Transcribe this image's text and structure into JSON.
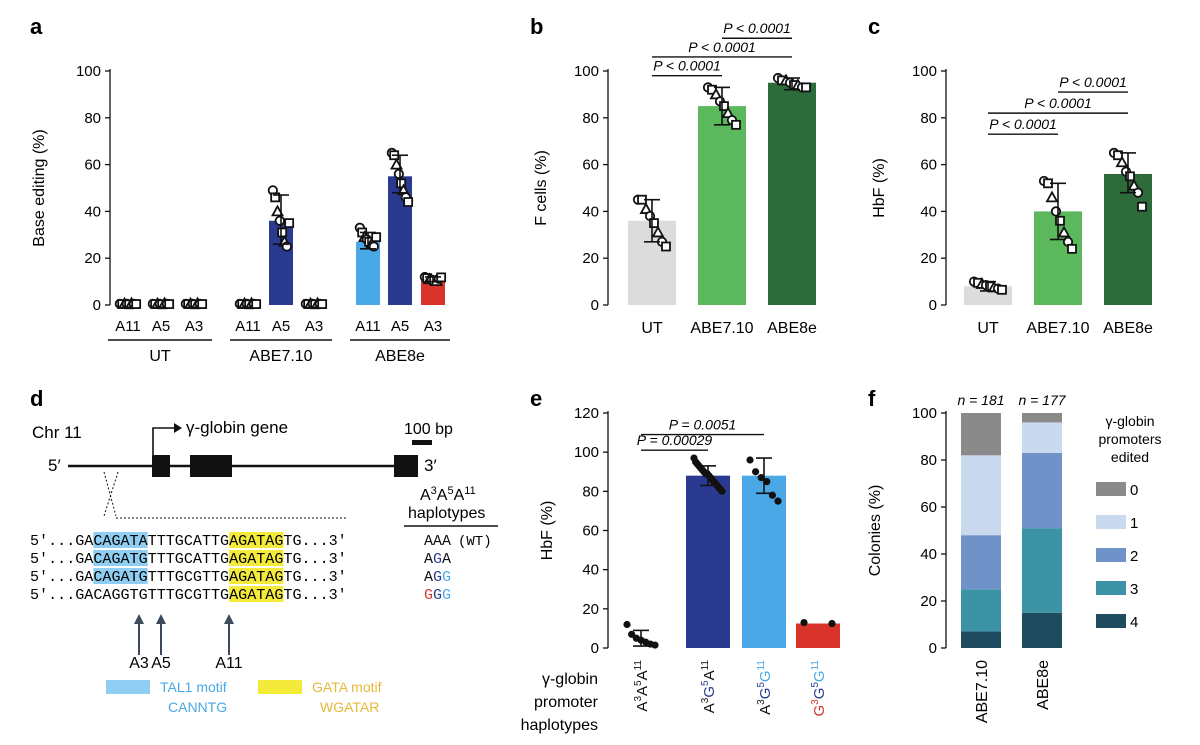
{
  "colors": {
    "ut": "#dcdcdc",
    "abe710_green": "#5cb85c",
    "abe8e_green": "#2e6b3a",
    "navy": "#2b3a91",
    "sky": "#4aa8e6",
    "red": "#d9342b",
    "tal1": "#8fcef2",
    "gata": "#f3ea3a",
    "stack": [
      "#8a8a8a",
      "#c9d9ee",
      "#6f93c9",
      "#3c93a6",
      "#1e4b5e"
    ]
  },
  "panels": {
    "a": {
      "letter": "a",
      "chart_data": {
        "type": "bar",
        "ylabel": "Base editing (%)",
        "ylim": [
          0,
          100
        ],
        "yticks": [
          "0",
          "20",
          "40",
          "60",
          "80",
          "100"
        ],
        "group_labels": [
          "UT",
          "ABE7.10",
          "ABE8e"
        ],
        "bar_labels": [
          "A11",
          "A5",
          "A3",
          "A11",
          "A5",
          "A3",
          "A11",
          "A5",
          "A3"
        ],
        "values": [
          0.5,
          0.5,
          0.5,
          0.5,
          36,
          0.5,
          27,
          55,
          11
        ],
        "err_lo": [
          0.5,
          0.5,
          0.5,
          0.5,
          26,
          0.5,
          24,
          48,
          10
        ],
        "err_hi": [
          0.6,
          0.6,
          0.6,
          0.6,
          47,
          0.6,
          31,
          64,
          12
        ],
        "bar_colors": [
          "#dcdcdc",
          "#dcdcdc",
          "#dcdcdc",
          "#dcdcdc",
          "#2b3a91",
          "#dcdcdc",
          "#4aa8e6",
          "#2b3a91",
          "#d9342b"
        ],
        "points": [
          [
            0.5,
            0.4,
            0.6,
            0.5,
            0.3,
            0.7,
            0.5,
            0.4
          ],
          [
            0.5,
            0.4,
            0.6,
            0.5,
            0.3,
            0.7,
            0.5,
            0.4
          ],
          [
            0.5,
            0.4,
            0.6,
            0.5,
            0.3,
            0.7,
            0.5,
            0.4
          ],
          [
            0.5,
            0.4,
            0.6,
            0.5,
            0.3,
            0.7,
            0.5,
            0.4
          ],
          [
            49,
            46,
            40,
            36,
            31,
            27,
            25,
            35
          ],
          [
            0.5,
            0.4,
            0.6,
            0.5,
            0.3,
            0.7,
            0.5,
            0.4
          ],
          [
            33,
            31,
            29,
            28,
            27,
            26,
            25,
            29
          ],
          [
            65,
            64,
            60,
            56,
            52,
            49,
            46,
            44
          ],
          [
            12,
            11.5,
            11,
            10.8,
            10.5,
            10.2,
            11.2,
            11.8
          ]
        ]
      }
    },
    "b": {
      "letter": "b",
      "chart_data": {
        "type": "bar",
        "ylabel": "F cells (%)",
        "ylim": [
          0,
          100
        ],
        "yticks": [
          "0",
          "20",
          "40",
          "60",
          "80",
          "100"
        ],
        "categories": [
          "UT",
          "ABE7.10",
          "ABE8e"
        ],
        "values": [
          36,
          85,
          95
        ],
        "err_lo": [
          27,
          77,
          92
        ],
        "err_hi": [
          45,
          93,
          97
        ],
        "bar_colors": [
          "#dcdcdc",
          "#5cb85c",
          "#2e6b3a"
        ],
        "points": [
          [
            45,
            45,
            41,
            38,
            35,
            31,
            27,
            25
          ],
          [
            93,
            92,
            90,
            87,
            85,
            82,
            79,
            77
          ],
          [
            97,
            96,
            96,
            95,
            94,
            94,
            93,
            93
          ]
        ],
        "annotations": [
          {
            "text": "P < 0.0001",
            "from": 0,
            "to": 1,
            "y": 98
          },
          {
            "text": "P < 0.0001",
            "from": 0,
            "to": 2,
            "y": 106
          },
          {
            "text": "P < 0.0001",
            "from": 1,
            "to": 2,
            "y": 114
          }
        ]
      }
    },
    "c": {
      "letter": "c",
      "chart_data": {
        "type": "bar",
        "ylabel": "HbF (%)",
        "ylim": [
          0,
          100
        ],
        "yticks": [
          "0",
          "20",
          "40",
          "60",
          "80",
          "100"
        ],
        "categories": [
          "UT",
          "ABE7.10",
          "ABE8e"
        ],
        "values": [
          8,
          40,
          56
        ],
        "err_lo": [
          6,
          28,
          48
        ],
        "err_hi": [
          10,
          52,
          65
        ],
        "bar_colors": [
          "#dcdcdc",
          "#5cb85c",
          "#2e6b3a"
        ],
        "points": [
          [
            10,
            9.5,
            9,
            8.5,
            8,
            7.5,
            7,
            6.5
          ],
          [
            53,
            52,
            46,
            40,
            36,
            31,
            27,
            24
          ],
          [
            65,
            64,
            61,
            57,
            55,
            51,
            48,
            42
          ]
        ],
        "annotations": [
          {
            "text": "P < 0.0001",
            "from": 0,
            "to": 1,
            "y": 73
          },
          {
            "text": "P < 0.0001",
            "from": 0,
            "to": 2,
            "y": 82
          },
          {
            "text": "P < 0.0001",
            "from": 1,
            "to": 2,
            "y": 91
          }
        ]
      }
    },
    "d": {
      "letter": "d",
      "chr": "Chr 11",
      "gene": "γ-globin gene",
      "scale": "100 bp",
      "five": "5′",
      "three": "3′",
      "hap_title_1": "A3A5A11",
      "hap_title_1_parts": [
        "A",
        "3",
        "A",
        "5",
        "A",
        "11"
      ],
      "hap_title_2": "haplotypes",
      "seq_rows": [
        {
          "prefix": "5′...GA",
          "tal": "CAGATA",
          "mid": "TTTGCATTG",
          "gata": "AGATAG",
          "suffix": "TG...3′",
          "hap": [
            [
              "A",
              "#111"
            ],
            [
              "A",
              "#111"
            ],
            [
              "A",
              "#111"
            ]
          ],
          "wt": "(WT)"
        },
        {
          "prefix": "5′...GA",
          "tal": "CAGATG",
          "mid": "TTTGCATTG",
          "gata": "AGATAG",
          "suffix": "TG...3′",
          "hap": [
            [
              "A",
              "#111"
            ],
            [
              "G",
              "#2b3a91"
            ],
            [
              "A",
              "#111"
            ]
          ],
          "wt": ""
        },
        {
          "prefix": "5′...GA",
          "tal": "CAGATG",
          "mid": "TTTGCGTTG",
          "gata": "AGATAG",
          "suffix": "TG...3′",
          "hap": [
            [
              "A",
              "#111"
            ],
            [
              "G",
              "#2b3a91"
            ],
            [
              "G",
              "#4aa8e6"
            ]
          ],
          "wt": ""
        },
        {
          "prefix": "5′...GACAGGTGTTTGCGTTG",
          "tal": "",
          "mid": "",
          "gata": "AGATAG",
          "suffix": "TG...3′",
          "hap": [
            [
              "G",
              "#d9342b"
            ],
            [
              "G",
              "#2b3a91"
            ],
            [
              "G",
              "#4aa8e6"
            ]
          ],
          "wt": ""
        }
      ],
      "arrow_labels": [
        "A3",
        "A5",
        "A11"
      ],
      "tal1_label": "TAL1 motif",
      "tal1_seq": "CANNTG",
      "gata_label": "GATA motif",
      "gata_seq": "WGATAR"
    },
    "e": {
      "letter": "e",
      "chart_data": {
        "type": "bar",
        "ylabel": "HbF (%)",
        "ylim": [
          0,
          120
        ],
        "yticks": [
          "0",
          "20",
          "40",
          "60",
          "80",
          "100",
          "120"
        ],
        "xlabel_lines": [
          "γ-globin",
          "promoter",
          "haplotypes"
        ],
        "categories": [
          "A3A5A11",
          "A3G5A11",
          "A3G5G11",
          "G3G5G11"
        ],
        "values": [
          4.5,
          88,
          88,
          12.5
        ],
        "err_lo": [
          1,
          83,
          79,
          12.5
        ],
        "err_hi": [
          9,
          93,
          97,
          12.5
        ],
        "bar_colors": [
          "#ffffff",
          "#2b3a91",
          "#4aa8e6",
          "#d9342b"
        ],
        "points": [
          [
            12,
            7,
            5,
            4,
            3,
            2,
            1.5
          ],
          [
            97,
            95,
            94,
            93,
            92,
            91,
            90,
            89,
            89,
            88,
            87,
            86,
            85,
            84,
            83,
            82,
            81,
            80
          ],
          [
            96,
            90,
            87,
            85,
            78,
            75
          ],
          [
            13,
            12.5
          ]
        ],
        "annotations": [
          {
            "text": "P = 0.00029",
            "from": 0,
            "to": 1,
            "y": 101
          },
          {
            "text": "P = 0.0051",
            "from": 0,
            "to": 2,
            "y": 109
          }
        ]
      }
    },
    "f": {
      "letter": "f",
      "chart_data": {
        "type": "bar",
        "stacked": true,
        "ylabel": "Colonies (%)",
        "ylim": [
          0,
          100
        ],
        "yticks": [
          "0",
          "20",
          "40",
          "60",
          "80",
          "100"
        ],
        "categories": [
          "ABE7.10",
          "ABE8e"
        ],
        "n_labels": [
          "n = 181",
          "n = 177"
        ],
        "legend_title": [
          "γ-globin",
          "promoters",
          "edited"
        ],
        "series": [
          {
            "name": "4",
            "values": [
              7,
              15
            ]
          },
          {
            "name": "3",
            "values": [
              18,
              36
            ]
          },
          {
            "name": "2",
            "values": [
              23,
              32
            ]
          },
          {
            "name": "1",
            "values": [
              34,
              13
            ]
          },
          {
            "name": "0",
            "values": [
              18,
              4
            ]
          }
        ],
        "legend_order": [
          "0",
          "1",
          "2",
          "3",
          "4"
        ]
      }
    }
  }
}
